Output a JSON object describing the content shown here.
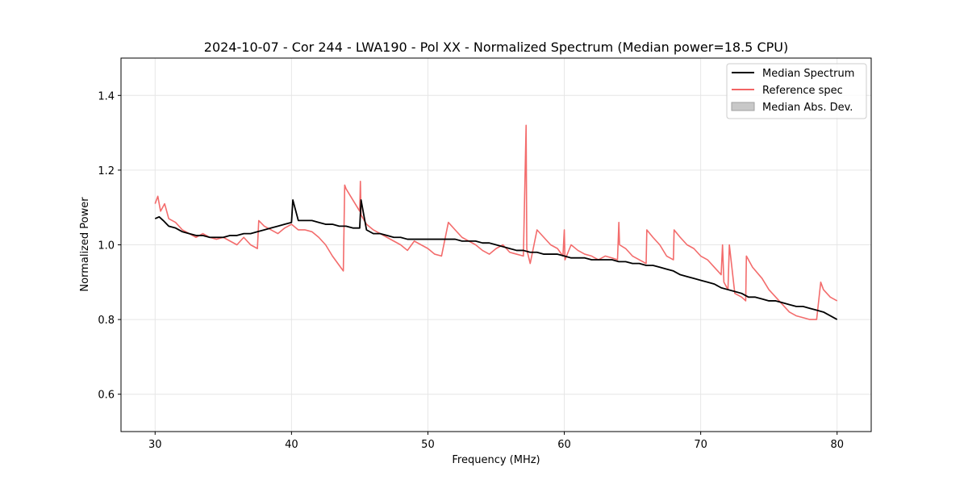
{
  "chart_data": {
    "type": "line",
    "title": "2024-10-07 - Cor 244 - LWA190 - Pol XX - Normalized Spectrum (Median power=18.5 CPU)",
    "xlabel": "Frequency (MHz)",
    "ylabel": "Normalized Power",
    "xlim": [
      27.5,
      82.5
    ],
    "ylim": [
      0.5,
      1.5
    ],
    "xticks": [
      30,
      40,
      50,
      60,
      70,
      80
    ],
    "yticks": [
      0.6,
      0.8,
      1.0,
      1.2,
      1.4
    ],
    "xtick_labels": [
      "30",
      "40",
      "50",
      "60",
      "70",
      "80"
    ],
    "ytick_labels": [
      "0.6",
      "0.8",
      "1.0",
      "1.2",
      "1.4"
    ],
    "grid": true,
    "legend_position": "top-right",
    "legend": [
      {
        "label": "Median Spectrum",
        "kind": "line",
        "color": "#000000"
      },
      {
        "label": "Reference spec",
        "kind": "line",
        "color": "#f26464"
      },
      {
        "label": "Median Abs. Dev.",
        "kind": "patch",
        "color": "#c8c8c8"
      }
    ],
    "series": [
      {
        "name": "Median Spectrum",
        "color": "#000000",
        "x": [
          30.0,
          30.3,
          30.6,
          31.0,
          31.5,
          32.0,
          32.5,
          33.0,
          33.5,
          34.0,
          34.5,
          35.0,
          35.5,
          36.0,
          36.5,
          37.0,
          37.5,
          38.0,
          38.5,
          39.0,
          39.5,
          40.0,
          40.1,
          40.5,
          41.0,
          41.5,
          42.0,
          42.5,
          43.0,
          43.5,
          44.0,
          44.5,
          45.0,
          45.1,
          45.5,
          46.0,
          46.5,
          47.0,
          47.5,
          48.0,
          48.5,
          49.0,
          49.5,
          50.0,
          50.5,
          51.0,
          51.5,
          52.0,
          52.5,
          53.0,
          53.5,
          54.0,
          54.5,
          55.0,
          55.5,
          56.0,
          56.5,
          57.0,
          57.5,
          58.0,
          58.5,
          59.0,
          59.5,
          60.0,
          60.5,
          61.0,
          61.5,
          62.0,
          62.5,
          63.0,
          63.5,
          64.0,
          64.5,
          65.0,
          65.5,
          66.0,
          66.5,
          67.0,
          67.5,
          68.0,
          68.5,
          69.0,
          69.5,
          70.0,
          70.5,
          71.0,
          71.5,
          72.0,
          72.5,
          73.0,
          73.5,
          74.0,
          74.5,
          75.0,
          75.5,
          76.0,
          76.5,
          77.0,
          77.5,
          78.0,
          78.5,
          79.0,
          79.5,
          80.0
        ],
        "y": [
          1.07,
          1.075,
          1.065,
          1.05,
          1.045,
          1.035,
          1.03,
          1.025,
          1.025,
          1.02,
          1.02,
          1.02,
          1.025,
          1.025,
          1.03,
          1.03,
          1.035,
          1.04,
          1.045,
          1.05,
          1.055,
          1.06,
          1.12,
          1.065,
          1.065,
          1.065,
          1.06,
          1.055,
          1.055,
          1.05,
          1.05,
          1.045,
          1.045,
          1.12,
          1.04,
          1.03,
          1.03,
          1.025,
          1.02,
          1.02,
          1.015,
          1.015,
          1.015,
          1.015,
          1.015,
          1.015,
          1.015,
          1.015,
          1.01,
          1.01,
          1.01,
          1.005,
          1.005,
          1.0,
          0.995,
          0.99,
          0.985,
          0.985,
          0.98,
          0.98,
          0.975,
          0.975,
          0.975,
          0.97,
          0.965,
          0.965,
          0.965,
          0.96,
          0.96,
          0.96,
          0.96,
          0.955,
          0.955,
          0.95,
          0.95,
          0.945,
          0.945,
          0.94,
          0.935,
          0.93,
          0.92,
          0.915,
          0.91,
          0.905,
          0.9,
          0.895,
          0.885,
          0.88,
          0.875,
          0.87,
          0.86,
          0.86,
          0.855,
          0.85,
          0.85,
          0.845,
          0.84,
          0.835,
          0.835,
          0.83,
          0.825,
          0.82,
          0.81,
          0.8
        ]
      },
      {
        "name": "Reference spec",
        "color": "#f26464",
        "x": [
          30.0,
          30.2,
          30.4,
          30.7,
          31.0,
          31.5,
          32.0,
          32.5,
          33.0,
          33.5,
          34.0,
          34.5,
          35.0,
          35.5,
          36.0,
          36.5,
          37.0,
          37.5,
          37.6,
          38.0,
          38.5,
          39.0,
          39.5,
          40.0,
          40.5,
          41.0,
          41.5,
          42.0,
          42.5,
          43.0,
          43.5,
          43.8,
          43.9,
          44.0,
          44.5,
          45.0,
          45.05,
          45.1,
          45.5,
          46.0,
          46.5,
          47.0,
          47.5,
          48.0,
          48.5,
          49.0,
          49.5,
          50.0,
          50.5,
          51.0,
          51.5,
          52.0,
          52.5,
          53.0,
          53.5,
          54.0,
          54.5,
          55.0,
          55.5,
          56.0,
          56.5,
          57.0,
          57.2,
          57.25,
          57.3,
          57.5,
          58.0,
          58.5,
          59.0,
          59.5,
          59.9,
          60.0,
          60.05,
          60.5,
          61.0,
          61.5,
          62.0,
          62.5,
          63.0,
          63.5,
          63.9,
          64.0,
          64.05,
          64.5,
          65.0,
          65.5,
          66.0,
          66.05,
          66.5,
          67.0,
          67.5,
          68.0,
          68.05,
          68.5,
          69.0,
          69.5,
          70.0,
          70.5,
          71.0,
          71.5,
          71.6,
          71.7,
          72.0,
          72.1,
          72.5,
          73.0,
          73.3,
          73.35,
          73.8,
          74.5,
          75.0,
          75.5,
          76.0,
          76.5,
          77.0,
          77.5,
          78.0,
          78.5,
          78.8,
          79.0,
          79.5,
          80.0
        ],
        "y": [
          1.11,
          1.13,
          1.09,
          1.11,
          1.07,
          1.06,
          1.04,
          1.03,
          1.02,
          1.03,
          1.02,
          1.015,
          1.02,
          1.01,
          1.0,
          1.02,
          1.0,
          0.99,
          1.065,
          1.05,
          1.04,
          1.03,
          1.045,
          1.055,
          1.04,
          1.04,
          1.035,
          1.02,
          1.0,
          0.97,
          0.945,
          0.93,
          1.16,
          1.15,
          1.12,
          1.09,
          1.17,
          1.08,
          1.055,
          1.04,
          1.03,
          1.02,
          1.01,
          1.0,
          0.985,
          1.01,
          1.0,
          0.99,
          0.975,
          0.97,
          1.06,
          1.04,
          1.02,
          1.01,
          1.0,
          0.985,
          0.975,
          0.99,
          1.0,
          0.98,
          0.975,
          0.97,
          1.32,
          0.99,
          0.98,
          0.95,
          1.04,
          1.02,
          1.0,
          0.99,
          0.97,
          1.04,
          0.96,
          1.0,
          0.985,
          0.975,
          0.97,
          0.96,
          0.97,
          0.965,
          0.96,
          1.06,
          1.0,
          0.99,
          0.97,
          0.96,
          0.95,
          1.04,
          1.02,
          1.0,
          0.97,
          0.96,
          1.04,
          1.02,
          1.0,
          0.99,
          0.97,
          0.96,
          0.94,
          0.92,
          1.0,
          0.9,
          0.88,
          1.0,
          0.87,
          0.86,
          0.85,
          0.97,
          0.94,
          0.91,
          0.88,
          0.86,
          0.84,
          0.82,
          0.81,
          0.805,
          0.8,
          0.8,
          0.9,
          0.88,
          0.86,
          0.85
        ]
      }
    ]
  }
}
